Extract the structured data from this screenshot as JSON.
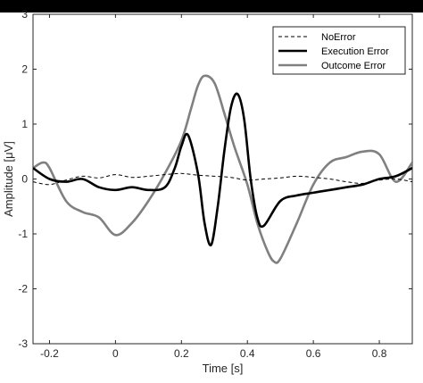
{
  "chart_data": {
    "type": "line",
    "xlabel": "Time [s]",
    "ylabel": "Amplitude [μV]",
    "xlim": [
      -0.25,
      0.9
    ],
    "ylim": [
      -3,
      3
    ],
    "xticks": [
      -0.2,
      0,
      0.2,
      0.4,
      0.6,
      0.8
    ],
    "yticks": [
      -3,
      -2,
      -1,
      0,
      1,
      2,
      3
    ],
    "xtick_labels": [
      "-0.2",
      "0",
      "0.2",
      "0.4",
      "0.6",
      "0.8"
    ],
    "ytick_labels": [
      "-3",
      "-2",
      "-1",
      "0",
      "1",
      "2",
      "3"
    ],
    "grid": false,
    "legend_position": "top-right",
    "series": [
      {
        "name": "NoError",
        "color": "#000000",
        "style": "dashed",
        "x": [
          -0.25,
          -0.2,
          -0.15,
          -0.1,
          -0.05,
          0,
          0.05,
          0.1,
          0.15,
          0.2,
          0.25,
          0.3,
          0.35,
          0.4,
          0.45,
          0.5,
          0.55,
          0.6,
          0.65,
          0.7,
          0.75,
          0.8,
          0.85,
          0.9
        ],
        "y": [
          -0.05,
          -0.1,
          -0.02,
          0.05,
          0.02,
          0.08,
          0.03,
          0.05,
          0.08,
          0.1,
          0.07,
          0.05,
          0.03,
          -0.02,
          0.0,
          0.02,
          0.05,
          0.03,
          0.0,
          -0.05,
          -0.08,
          -0.02,
          0.0,
          -0.05
        ]
      },
      {
        "name": "Execution Error",
        "color": "#000000",
        "style": "solid",
        "x": [
          -0.25,
          -0.2,
          -0.15,
          -0.1,
          -0.05,
          0,
          0.05,
          0.1,
          0.15,
          0.18,
          0.2,
          0.22,
          0.25,
          0.27,
          0.29,
          0.31,
          0.33,
          0.35,
          0.37,
          0.39,
          0.41,
          0.43,
          0.45,
          0.5,
          0.55,
          0.6,
          0.65,
          0.7,
          0.75,
          0.8,
          0.85,
          0.9
        ],
        "y": [
          0.2,
          0.0,
          -0.05,
          0.0,
          -0.15,
          -0.2,
          -0.15,
          -0.2,
          -0.15,
          0.2,
          0.6,
          0.8,
          0.1,
          -0.8,
          -1.2,
          -0.5,
          0.5,
          1.3,
          1.55,
          1.1,
          0.0,
          -0.7,
          -0.85,
          -0.4,
          -0.3,
          -0.25,
          -0.2,
          -0.15,
          -0.1,
          0.0,
          0.05,
          0.2
        ]
      },
      {
        "name": "Outcome Error",
        "color": "#808080",
        "style": "solid",
        "x": [
          -0.25,
          -0.22,
          -0.2,
          -0.15,
          -0.1,
          -0.05,
          0,
          0.05,
          0.1,
          0.15,
          0.2,
          0.23,
          0.25,
          0.27,
          0.3,
          0.33,
          0.36,
          0.4,
          0.43,
          0.46,
          0.48,
          0.5,
          0.55,
          0.6,
          0.65,
          0.7,
          0.75,
          0.8,
          0.85,
          0.9
        ],
        "y": [
          0.2,
          0.3,
          0.2,
          -0.4,
          -0.6,
          -0.7,
          -1.02,
          -0.8,
          -0.4,
          0.1,
          0.7,
          1.3,
          1.7,
          1.88,
          1.75,
          1.2,
          0.6,
          -0.1,
          -0.8,
          -1.3,
          -1.5,
          -1.45,
          -0.8,
          -0.1,
          0.3,
          0.4,
          0.5,
          0.45,
          -0.05,
          0.3
        ]
      }
    ]
  }
}
